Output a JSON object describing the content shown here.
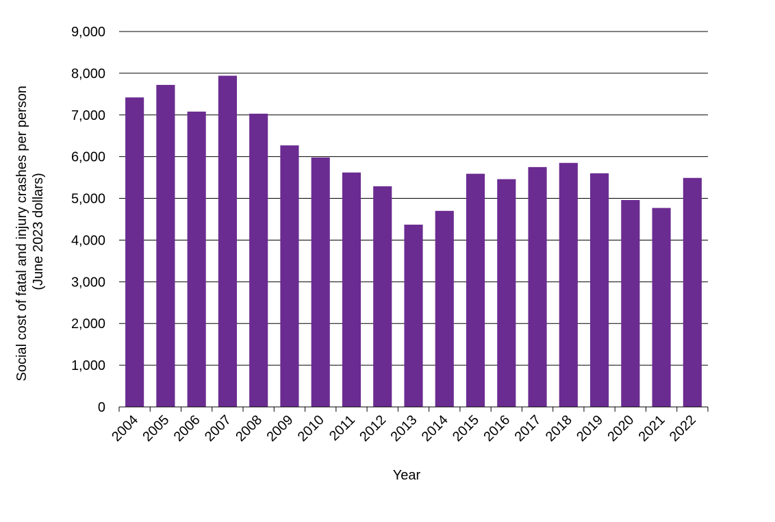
{
  "chart_data": {
    "type": "bar",
    "title": "",
    "xlabel": "Year",
    "ylabel_lines": [
      "Social cost of fatal and injury crashes per person",
      "(June 2023 dollars)"
    ],
    "categories": [
      "2004",
      "2005",
      "2006",
      "2007",
      "2008",
      "2009",
      "2010",
      "2011",
      "2012",
      "2013",
      "2014",
      "2015",
      "2016",
      "2017",
      "2018",
      "2019",
      "2020",
      "2021",
      "2022"
    ],
    "values": [
      7420,
      7720,
      7080,
      7940,
      7030,
      6270,
      5980,
      5620,
      5290,
      4370,
      4700,
      5590,
      5460,
      5750,
      5850,
      5600,
      4960,
      4770,
      5490
    ],
    "ylim": [
      0,
      9000
    ],
    "yticks": [
      0,
      1000,
      2000,
      3000,
      4000,
      5000,
      6000,
      7000,
      8000,
      9000
    ],
    "ytick_labels": [
      "0",
      "1,000",
      "2,000",
      "3,000",
      "4,000",
      "5,000",
      "6,000",
      "7,000",
      "8,000",
      "9,000"
    ],
    "grid": true,
    "bar_color": "#6B2C91",
    "grid_color": "#000000",
    "legend": "none"
  }
}
